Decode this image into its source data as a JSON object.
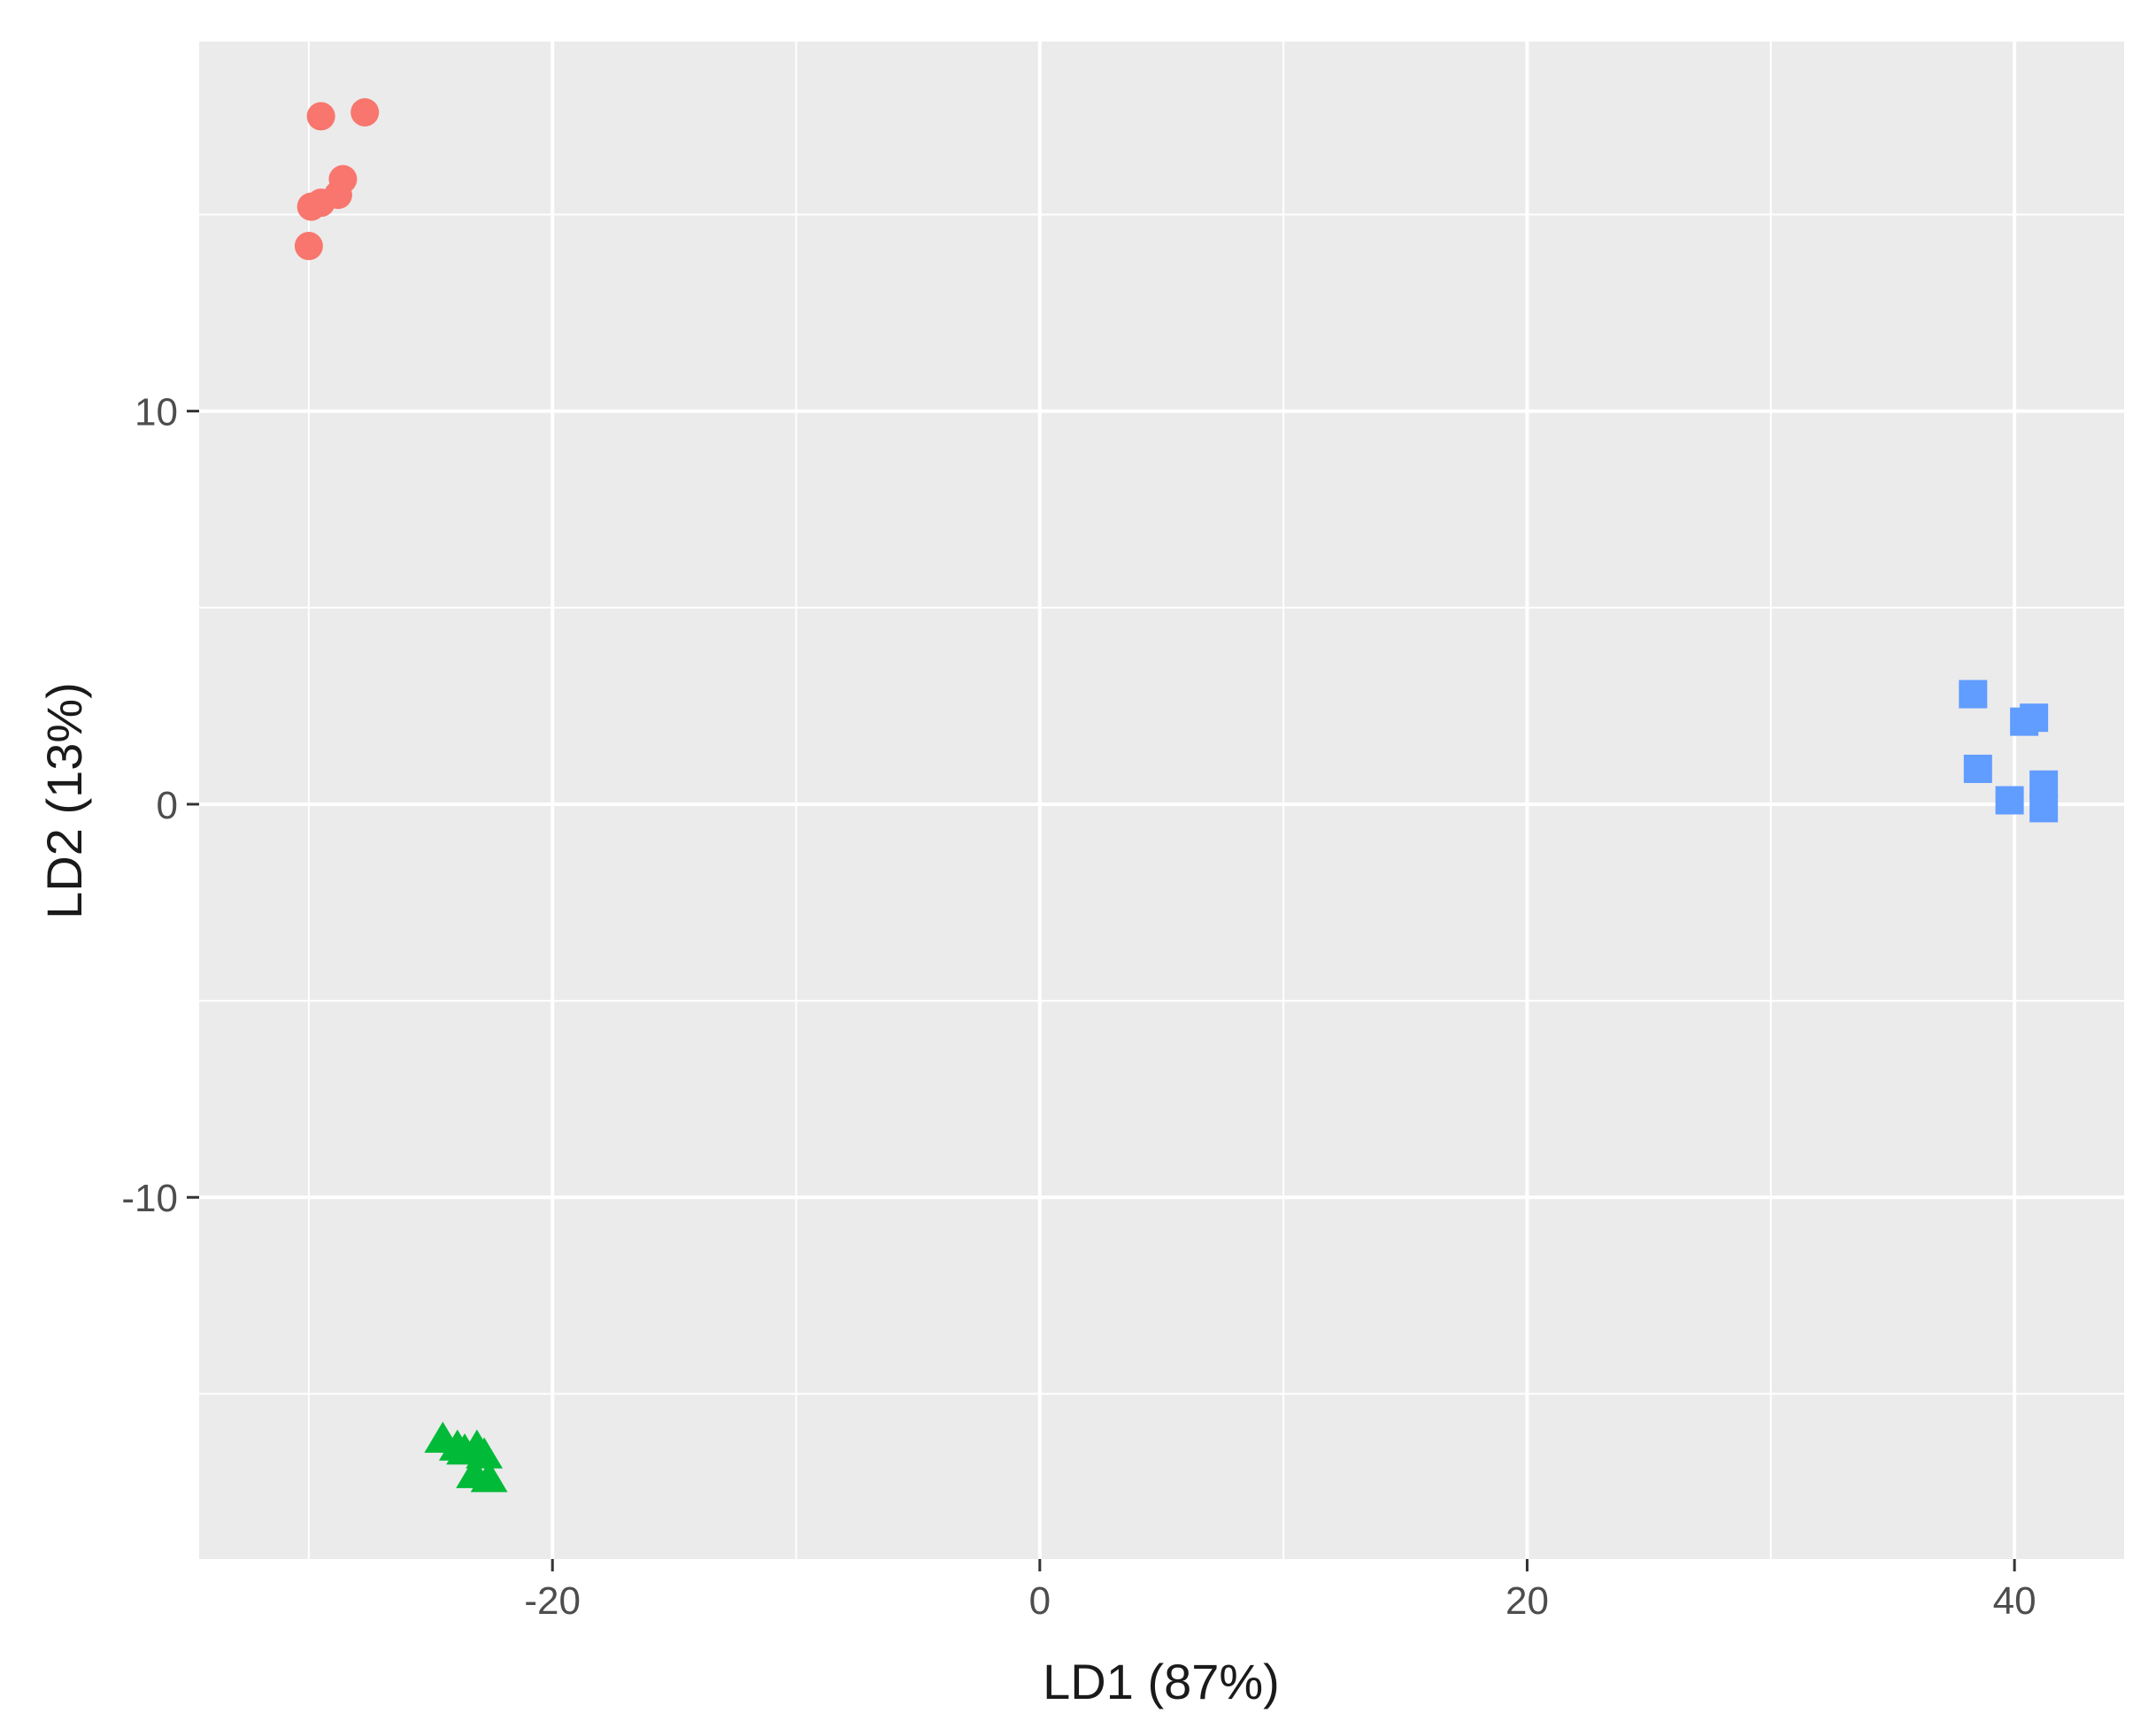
{
  "chart_data": {
    "type": "scatter",
    "title": "",
    "xlabel": "LD1 (87%)",
    "ylabel": "LD2 (13%)",
    "xlim": [
      -34.5,
      44.5
    ],
    "ylim": [
      -19.2,
      19.4
    ],
    "x_ticks": [
      -20,
      0,
      20,
      40
    ],
    "x_tick_labels": [
      "-20",
      "0",
      "20",
      "40"
    ],
    "y_ticks": [
      -10,
      0,
      10
    ],
    "y_tick_labels": [
      "-10",
      "0",
      "10"
    ],
    "x_minor": [
      -30,
      -10,
      10,
      30
    ],
    "y_minor": [
      -15,
      -5,
      5,
      15
    ],
    "grid": true,
    "legend": "none",
    "panel_color": "#ebebeb",
    "grid_color": "#ffffff",
    "series": [
      {
        "shape": "circle",
        "color": "#f8766d",
        "points": [
          {
            "x": -29.5,
            "y": 17.5
          },
          {
            "x": -27.7,
            "y": 17.6
          },
          {
            "x": -28.6,
            "y": 15.9
          },
          {
            "x": -28.8,
            "y": 15.5
          },
          {
            "x": -29.9,
            "y": 15.2
          },
          {
            "x": -29.5,
            "y": 15.3
          },
          {
            "x": -30.0,
            "y": 14.2
          }
        ]
      },
      {
        "shape": "triangle",
        "color": "#00ba38",
        "points": [
          {
            "x": -24.5,
            "y": -16.2
          },
          {
            "x": -23.9,
            "y": -16.4
          },
          {
            "x": -23.1,
            "y": -16.4
          },
          {
            "x": -22.8,
            "y": -16.6
          },
          {
            "x": -23.2,
            "y": -17.1
          },
          {
            "x": -22.6,
            "y": -17.2
          },
          {
            "x": -23.6,
            "y": -16.5
          }
        ]
      },
      {
        "shape": "square",
        "color": "#619cff",
        "points": [
          {
            "x": 38.3,
            "y": 2.8
          },
          {
            "x": 40.4,
            "y": 2.1
          },
          {
            "x": 40.8,
            "y": 2.2
          },
          {
            "x": 38.5,
            "y": 0.9
          },
          {
            "x": 39.8,
            "y": 0.1
          },
          {
            "x": 41.2,
            "y": 0.5
          },
          {
            "x": 41.2,
            "y": -0.1
          }
        ]
      }
    ]
  }
}
